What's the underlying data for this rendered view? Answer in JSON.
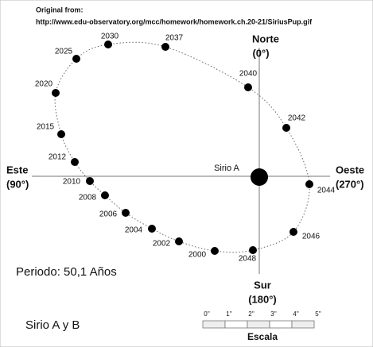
{
  "source": {
    "label": "Original from:",
    "url": "http://www.edu-observatory.org/mcc/homework/homework.ch.20-21/SiriusPup.gif"
  },
  "directions": {
    "north": {
      "name": "Norte",
      "angle": "(0°)"
    },
    "east": {
      "name": "Este",
      "angle": "(90°)"
    },
    "west": {
      "name": "Oeste",
      "angle": "(270°)"
    },
    "south": {
      "name": "Sur",
      "angle": "(180°)"
    }
  },
  "star_label": "Sirio A",
  "orbit_years": [
    "2000",
    "2002",
    "2004",
    "2006",
    "2008",
    "2010",
    "2012",
    "2015",
    "2020",
    "2025",
    "2030",
    "2037",
    "2040",
    "2042",
    "2044",
    "2046",
    "2048"
  ],
  "period": "Periodo: 50,1 Años",
  "title": "Sirio A y B",
  "scale": {
    "title": "Escala",
    "ticks": [
      "0''",
      "1''",
      "2''",
      "3''",
      "4''",
      "5''"
    ]
  }
}
